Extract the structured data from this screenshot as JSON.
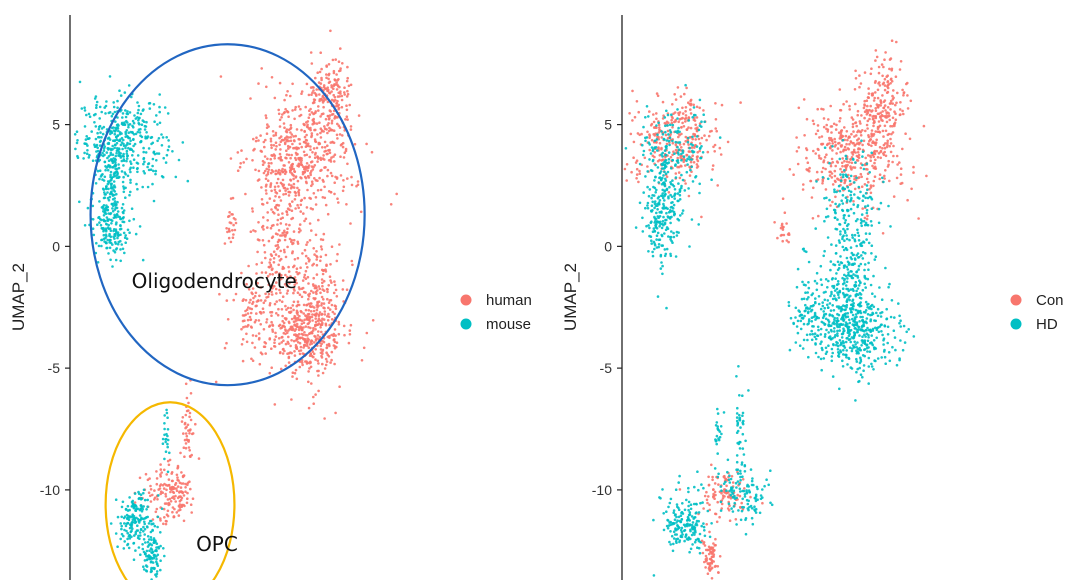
{
  "colors": {
    "red": "#F8766D",
    "cyan": "#00BFC4",
    "blue_ring": "#2166c2",
    "gold_ring": "#f5b800"
  },
  "chart_data": [
    {
      "type": "scatter",
      "title": "",
      "xlabel": "",
      "ylabel": "UMAP_2",
      "ylim": [
        -13.7,
        9.5
      ],
      "xlim": [
        -11,
        16
      ],
      "y_ticks": [
        "5",
        "0",
        "-5",
        "-10"
      ],
      "y_tick_values": [
        5,
        0,
        -5,
        -10
      ],
      "grid": false,
      "legend_position": "right",
      "series": [
        {
          "name": "human",
          "color": "#F8766D"
        },
        {
          "name": "mouse",
          "color": "#00BFC4"
        }
      ],
      "clusters": [
        {
          "series": "mouse",
          "cx": -7.2,
          "cy": 4.3,
          "sx": 1.6,
          "sy": 0.9,
          "n": 420
        },
        {
          "series": "mouse",
          "cx": -8.0,
          "cy": 2.5,
          "sx": 0.35,
          "sy": 0.9,
          "n": 90
        },
        {
          "series": "mouse",
          "cx": -8.0,
          "cy": 0.9,
          "sx": 0.8,
          "sy": 0.7,
          "n": 170
        },
        {
          "series": "human",
          "cx": 8.0,
          "cy": 6.0,
          "sx": 0.8,
          "sy": 0.9,
          "n": 170
        },
        {
          "series": "human",
          "cx": 6.0,
          "cy": 3.8,
          "sx": 1.9,
          "sy": 1.2,
          "n": 480
        },
        {
          "series": "human",
          "cx": 4.3,
          "cy": 0.0,
          "sx": 0.9,
          "sy": 2.0,
          "n": 260
        },
        {
          "series": "human",
          "cx": 7.0,
          "cy": -2.2,
          "sx": 1.0,
          "sy": 1.6,
          "n": 230
        },
        {
          "series": "human",
          "cx": 6.2,
          "cy": -3.6,
          "sx": 1.3,
          "sy": 0.8,
          "n": 300
        },
        {
          "series": "human",
          "cx": 2.5,
          "cy": -2.8,
          "sx": 0.9,
          "sy": 0.9,
          "n": 90
        },
        {
          "series": "human",
          "cx": 0.7,
          "cy": 0.8,
          "sx": 0.25,
          "sy": 0.5,
          "n": 25
        },
        {
          "series": "human",
          "cx": -3.6,
          "cy": -10.2,
          "sx": 1.0,
          "sy": 0.6,
          "n": 170
        },
        {
          "series": "human",
          "cx": -2.4,
          "cy": -7.6,
          "sx": 0.2,
          "sy": 0.9,
          "n": 45
        },
        {
          "series": "mouse",
          "cx": -4.0,
          "cy": -7.9,
          "sx": 0.15,
          "sy": 0.6,
          "n": 22
        },
        {
          "series": "mouse",
          "cx": -6.3,
          "cy": -11.3,
          "sx": 0.7,
          "sy": 0.6,
          "n": 170
        },
        {
          "series": "mouse",
          "cx": -5.0,
          "cy": -12.7,
          "sx": 0.35,
          "sy": 0.5,
          "n": 90
        }
      ],
      "annotations": [
        {
          "text": "Oligodendrocyte",
          "x": -6.5,
          "y": -1.7
        },
        {
          "text": "OPC",
          "x": -1.8,
          "y": -12.5
        }
      ],
      "highlight_regions": [
        {
          "label": "Oligodendrocyte",
          "color": "#2166c2",
          "cx": 0.5,
          "cy": 1.3,
          "rx": 10.0,
          "ry": 7.0
        },
        {
          "label": "OPC",
          "color": "#f5b800",
          "cx": -3.7,
          "cy": -10.6,
          "rx": 4.7,
          "ry": 4.2
        }
      ]
    },
    {
      "type": "scatter",
      "title": "",
      "xlabel": "",
      "ylabel": "UMAP_2",
      "ylim": [
        -13.7,
        9.5
      ],
      "xlim": [
        -11,
        16
      ],
      "y_ticks": [
        "5",
        "0",
        "-5",
        "-10"
      ],
      "y_tick_values": [
        5,
        0,
        -5,
        -10
      ],
      "grid": false,
      "legend_position": "right",
      "series": [
        {
          "name": "Con",
          "color": "#F8766D"
        },
        {
          "name": "HD",
          "color": "#00BFC4"
        }
      ],
      "clusters": [
        {
          "series": "Con",
          "cx": -7.2,
          "cy": 4.4,
          "sx": 1.6,
          "sy": 0.9,
          "n": 320
        },
        {
          "series": "HD",
          "cx": -7.2,
          "cy": 4.0,
          "sx": 1.4,
          "sy": 0.8,
          "n": 150
        },
        {
          "series": "HD",
          "cx": -8.0,
          "cy": 1.5,
          "sx": 0.7,
          "sy": 1.1,
          "n": 250
        },
        {
          "series": "Con",
          "cx": 8.0,
          "cy": 6.0,
          "sx": 0.8,
          "sy": 0.9,
          "n": 170
        },
        {
          "series": "Con",
          "cx": 5.9,
          "cy": 3.8,
          "sx": 1.9,
          "sy": 1.1,
          "n": 430
        },
        {
          "series": "HD",
          "cx": 5.8,
          "cy": 1.5,
          "sx": 1.0,
          "sy": 1.4,
          "n": 170
        },
        {
          "series": "HD",
          "cx": 5.5,
          "cy": -2.0,
          "sx": 1.0,
          "sy": 1.6,
          "n": 300
        },
        {
          "series": "HD",
          "cx": 6.2,
          "cy": -3.5,
          "sx": 1.5,
          "sy": 0.8,
          "n": 330
        },
        {
          "series": "HD",
          "cx": 2.8,
          "cy": -2.6,
          "sx": 0.9,
          "sy": 0.9,
          "n": 110
        },
        {
          "series": "Con",
          "cx": 0.7,
          "cy": 0.8,
          "sx": 0.25,
          "sy": 0.5,
          "n": 20
        },
        {
          "series": "Con",
          "cx": -3.6,
          "cy": -10.2,
          "sx": 0.8,
          "sy": 0.5,
          "n": 100
        },
        {
          "series": "HD",
          "cx": -2.2,
          "cy": -10.2,
          "sx": 0.9,
          "sy": 0.6,
          "n": 110
        },
        {
          "series": "HD",
          "cx": -2.4,
          "cy": -7.6,
          "sx": 0.2,
          "sy": 1.0,
          "n": 40
        },
        {
          "series": "HD",
          "cx": -4.0,
          "cy": -7.9,
          "sx": 0.15,
          "sy": 0.6,
          "n": 22
        },
        {
          "series": "HD",
          "cx": -6.4,
          "cy": -11.3,
          "sx": 0.8,
          "sy": 0.6,
          "n": 180
        },
        {
          "series": "Con",
          "cx": -4.5,
          "cy": -12.8,
          "sx": 0.3,
          "sy": 0.5,
          "n": 70
        }
      ],
      "annotations": [],
      "highlight_regions": []
    }
  ]
}
